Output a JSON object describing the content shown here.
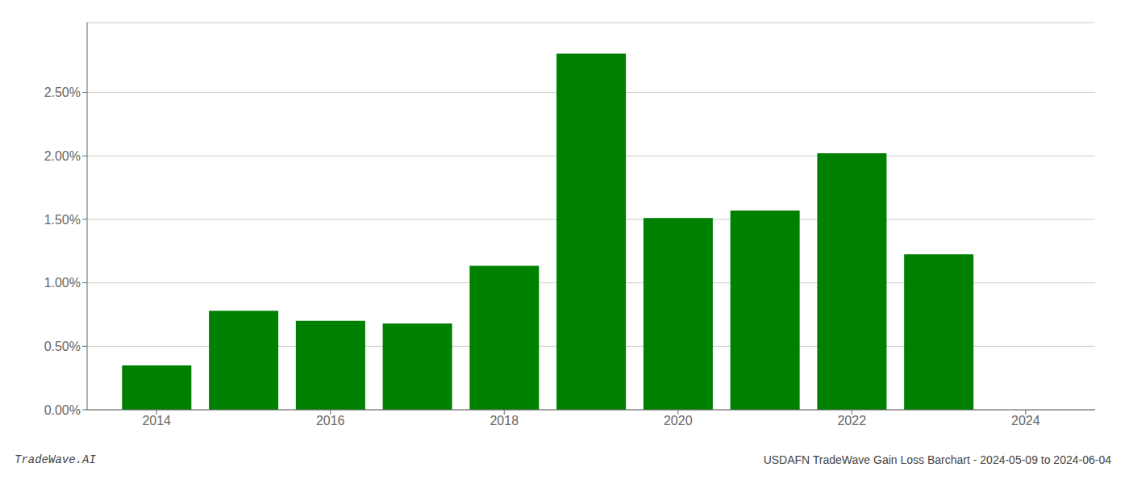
{
  "chart_data": {
    "type": "bar",
    "x": [
      2014,
      2015,
      2016,
      2017,
      2018,
      2019,
      2020,
      2021,
      2022,
      2023
    ],
    "values": [
      0.0035,
      0.0078,
      0.007,
      0.0068,
      0.01135,
      0.02805,
      0.0151,
      0.0157,
      0.0202,
      0.01225
    ],
    "color": "#008000",
    "xlim": [
      2013.2,
      2024.8
    ],
    "xticks": [
      2014,
      2016,
      2018,
      2020,
      2022,
      2024
    ],
    "ylim": [
      0,
      0.0305
    ],
    "yticks": [
      {
        "value": 0.0,
        "label": "0.00%"
      },
      {
        "value": 0.005,
        "label": "0.50%"
      },
      {
        "value": 0.01,
        "label": "1.00%"
      },
      {
        "value": 0.015,
        "label": "1.50%"
      },
      {
        "value": 0.02,
        "label": "2.00%"
      },
      {
        "value": 0.025,
        "label": "2.50%"
      }
    ],
    "grid": "y",
    "annotations": [
      "TradeWave.AI",
      "USDAFN TradeWave Gain Loss Barchart - 2024-05-09 to 2024-06-04"
    ]
  }
}
